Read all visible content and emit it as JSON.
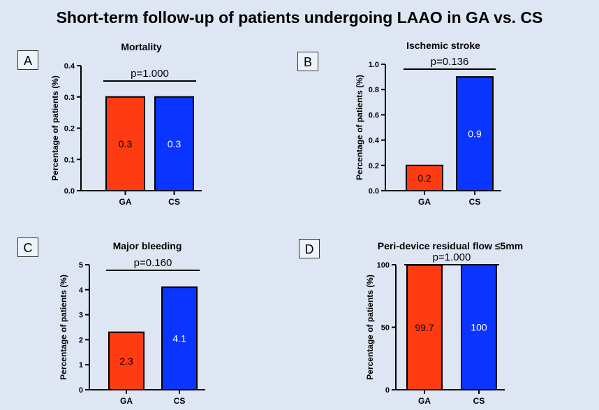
{
  "title": "Short-term follow-up of patients undergoing LAAO in GA vs. CS",
  "colors": {
    "GA": "#ff3b12",
    "CS": "#0a34ff",
    "background": "#dfe6f3"
  },
  "chart_data": [
    {
      "panel": "A",
      "type": "bar",
      "title": "Mortality",
      "ylabel": "Percentage of patients (%)",
      "categories": [
        "GA",
        "CS"
      ],
      "values": [
        0.3,
        0.3
      ],
      "value_labels": [
        "0.3",
        "0.3"
      ],
      "ylim": [
        0,
        0.4
      ],
      "yticks": [
        0,
        0.1,
        0.2,
        0.3,
        0.4
      ],
      "ytick_labels": [
        "0.0",
        "0.1",
        "0.2",
        "0.3",
        "0.4"
      ],
      "p_value": "p=1.000",
      "grid": false
    },
    {
      "panel": "B",
      "type": "bar",
      "title": "Ischemic stroke",
      "ylabel": "Percentage of patients (%)",
      "categories": [
        "GA",
        "CS"
      ],
      "values": [
        0.2,
        0.9
      ],
      "value_labels": [
        "0.2",
        "0.9"
      ],
      "ylim": [
        0,
        1.0
      ],
      "yticks": [
        0,
        0.2,
        0.4,
        0.6,
        0.8,
        1.0
      ],
      "ytick_labels": [
        "0.0",
        "0.2",
        "0.4",
        "0.6",
        "0.8",
        "1.0"
      ],
      "p_value": "p=0.136",
      "grid": false
    },
    {
      "panel": "C",
      "type": "bar",
      "title": "Major bleeding",
      "ylabel": "Percentage of patients (%)",
      "categories": [
        "GA",
        "CS"
      ],
      "values": [
        2.3,
        4.1
      ],
      "value_labels": [
        "2.3",
        "4.1"
      ],
      "ylim": [
        0,
        5
      ],
      "yticks": [
        0,
        1,
        2,
        3,
        4,
        5
      ],
      "ytick_labels": [
        "0",
        "1",
        "2",
        "3",
        "4",
        "5"
      ],
      "p_value": "p=0.160",
      "grid": false
    },
    {
      "panel": "D",
      "type": "bar",
      "title": "Peri-device residual flow ≤5mm",
      "ylabel": "Percentage of patients (%)",
      "categories": [
        "GA",
        "CS"
      ],
      "values": [
        99.7,
        100
      ],
      "value_labels": [
        "99.7",
        "100"
      ],
      "ylim": [
        0,
        100
      ],
      "yticks": [
        0,
        50,
        100
      ],
      "ytick_labels": [
        "0",
        "50",
        "100"
      ],
      "p_value": "p=1.000",
      "grid": false
    }
  ]
}
